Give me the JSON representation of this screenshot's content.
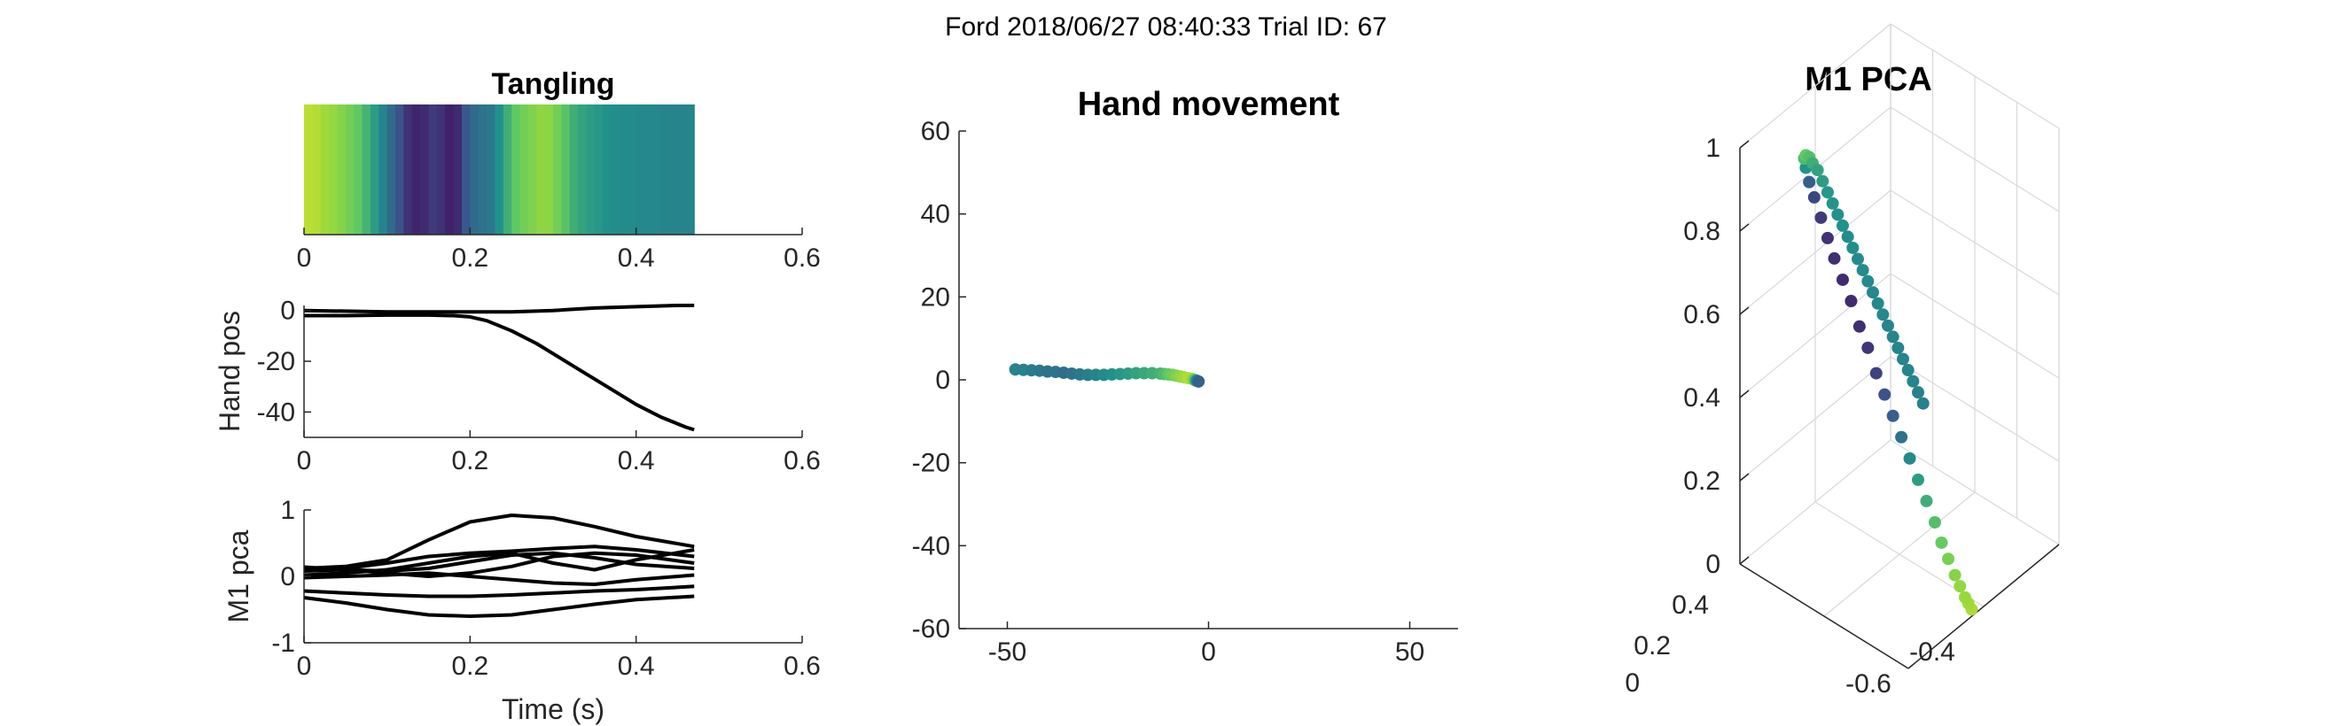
{
  "figure": {
    "suptitle": "Ford 2018/06/27 08:40:33 Trial ID: 67",
    "colors": {
      "line": "#000000",
      "axis": "#262626",
      "grid3d": "#d9d9d9",
      "viridis": [
        "#440154",
        "#3b528b",
        "#21918c",
        "#5ec962",
        "#a0da39",
        "#fde725"
      ]
    }
  },
  "chart_data": [
    {
      "id": "tangling",
      "type": "heatmap",
      "title": "Tangling",
      "xlabel": "",
      "ylabel": "",
      "xlim": [
        0,
        0.6
      ],
      "xticks": [
        0,
        0.2,
        0.4,
        0.6
      ],
      "xtick_labels": [
        "0",
        "0.2",
        "0.4",
        "0.6"
      ],
      "colormap": "viridis",
      "clim": [
        0,
        1
      ],
      "t": [
        0.0,
        0.01,
        0.02,
        0.03,
        0.04,
        0.05,
        0.06,
        0.07,
        0.08,
        0.09,
        0.1,
        0.11,
        0.12,
        0.13,
        0.14,
        0.15,
        0.16,
        0.17,
        0.18,
        0.19,
        0.2,
        0.21,
        0.22,
        0.23,
        0.24,
        0.25,
        0.26,
        0.27,
        0.28,
        0.29,
        0.3,
        0.31,
        0.32,
        0.33,
        0.34,
        0.35,
        0.36,
        0.37,
        0.38,
        0.39,
        0.4,
        0.41,
        0.42,
        0.43,
        0.44,
        0.45,
        0.46
      ],
      "values": [
        0.86,
        0.84,
        0.8,
        0.76,
        0.72,
        0.66,
        0.6,
        0.52,
        0.44,
        0.36,
        0.28,
        0.2,
        0.12,
        0.09,
        0.1,
        0.14,
        0.12,
        0.08,
        0.1,
        0.22,
        0.28,
        0.3,
        0.32,
        0.4,
        0.5,
        0.6,
        0.66,
        0.7,
        0.75,
        0.74,
        0.66,
        0.58,
        0.5,
        0.46,
        0.44,
        0.42,
        0.4,
        0.39,
        0.38,
        0.38,
        0.37,
        0.37,
        0.37,
        0.36,
        0.36,
        0.36,
        0.36
      ]
    },
    {
      "id": "hand-pos",
      "type": "line",
      "title": "",
      "xlabel": "",
      "ylabel": "Hand pos",
      "xlim": [
        0,
        0.6
      ],
      "ylim": [
        -50,
        2
      ],
      "xticks": [
        0,
        0.2,
        0.4,
        0.6
      ],
      "xtick_labels": [
        "0",
        "0.2",
        "0.4",
        "0.6"
      ],
      "yticks": [
        0,
        -20,
        -40
      ],
      "ytick_labels": [
        "0",
        "-20",
        "-40"
      ],
      "series": [
        {
          "x": [
            0,
            0.1,
            0.2,
            0.25,
            0.3,
            0.35,
            0.4,
            0.45,
            0.47
          ],
          "y": [
            0,
            -0.5,
            -0.5,
            -0.5,
            0,
            1,
            1.5,
            2,
            2
          ]
        },
        {
          "x": [
            0,
            0.05,
            0.1,
            0.15,
            0.18,
            0.2,
            0.22,
            0.25,
            0.28,
            0.31,
            0.34,
            0.37,
            0.4,
            0.43,
            0.46,
            0.47
          ],
          "y": [
            -2,
            -2,
            -1.8,
            -1.8,
            -2,
            -2.5,
            -4,
            -8,
            -13,
            -19,
            -25,
            -31,
            -37,
            -42,
            -46,
            -47
          ]
        }
      ]
    },
    {
      "id": "m1-pca-traces",
      "type": "line",
      "title": "",
      "xlabel": "Time (s)",
      "ylabel": "M1 pca",
      "xlim": [
        0,
        0.6
      ],
      "ylim": [
        -1,
        1
      ],
      "xticks": [
        0,
        0.2,
        0.4,
        0.6
      ],
      "xtick_labels": [
        "0",
        "0.2",
        "0.4",
        "0.6"
      ],
      "yticks": [
        1,
        0,
        -1
      ],
      "ytick_labels": [
        "1",
        "0",
        "-1"
      ],
      "series": [
        {
          "x": [
            0,
            0.05,
            0.1,
            0.15,
            0.2,
            0.25,
            0.3,
            0.35,
            0.4,
            0.47
          ],
          "y": [
            0.12,
            0.15,
            0.25,
            0.55,
            0.82,
            0.92,
            0.88,
            0.75,
            0.6,
            0.45
          ]
        },
        {
          "x": [
            0,
            0.05,
            0.1,
            0.15,
            0.2,
            0.25,
            0.3,
            0.35,
            0.4,
            0.47
          ],
          "y": [
            0.1,
            0.12,
            0.2,
            0.3,
            0.35,
            0.38,
            0.42,
            0.45,
            0.4,
            0.3
          ]
        },
        {
          "x": [
            0,
            0.05,
            0.1,
            0.15,
            0.2,
            0.25,
            0.3,
            0.35,
            0.4,
            0.47
          ],
          "y": [
            0.02,
            0.05,
            0.1,
            0.2,
            0.3,
            0.35,
            0.2,
            0.1,
            0.25,
            0.4
          ]
        },
        {
          "x": [
            0,
            0.05,
            0.1,
            0.15,
            0.2,
            0.25,
            0.3,
            0.35,
            0.4,
            0.47
          ],
          "y": [
            0.08,
            0.1,
            0.05,
            0.0,
            0.05,
            0.15,
            0.3,
            0.35,
            0.32,
            0.2
          ]
        },
        {
          "x": [
            0,
            0.05,
            0.1,
            0.15,
            0.2,
            0.25,
            0.3,
            0.35,
            0.4,
            0.47
          ],
          "y": [
            0.14,
            0.1,
            0.08,
            0.12,
            0.22,
            0.32,
            0.35,
            0.28,
            0.18,
            0.12
          ]
        },
        {
          "x": [
            0,
            0.05,
            0.1,
            0.15,
            0.2,
            0.25,
            0.3,
            0.35,
            0.4,
            0.47
          ],
          "y": [
            -0.02,
            0.0,
            0.02,
            0.05,
            0.0,
            -0.05,
            -0.1,
            -0.12,
            -0.05,
            0.02
          ]
        },
        {
          "x": [
            0,
            0.05,
            0.1,
            0.15,
            0.2,
            0.25,
            0.3,
            0.35,
            0.4,
            0.47
          ],
          "y": [
            -0.22,
            -0.25,
            -0.28,
            -0.3,
            -0.3,
            -0.28,
            -0.25,
            -0.22,
            -0.2,
            -0.15
          ]
        },
        {
          "x": [
            0,
            0.05,
            0.1,
            0.15,
            0.2,
            0.25,
            0.3,
            0.35,
            0.4,
            0.47
          ],
          "y": [
            -0.32,
            -0.4,
            -0.5,
            -0.58,
            -0.6,
            -0.58,
            -0.5,
            -0.42,
            -0.35,
            -0.3
          ]
        }
      ]
    },
    {
      "id": "hand-movement",
      "type": "scatter",
      "title": "Hand movement",
      "xlabel": "",
      "ylabel": "",
      "xlim": [
        -62,
        62
      ],
      "ylim": [
        -60,
        60
      ],
      "xticks": [
        -50,
        0,
        50
      ],
      "xtick_labels": [
        "-50",
        "0",
        "50"
      ],
      "yticks": [
        60,
        40,
        20,
        0,
        -20,
        -40,
        -60
      ],
      "ytick_labels": [
        "60",
        "40",
        "20",
        "0",
        "-20",
        "-40",
        "-60"
      ],
      "colormap": "viridis",
      "x": [
        -48,
        -46,
        -44,
        -42,
        -40,
        -38,
        -36,
        -34,
        -32,
        -30,
        -28,
        -26,
        -24,
        -22,
        -20,
        -18,
        -16,
        -14,
        -12,
        -11,
        -10,
        -9,
        -8,
        -7,
        -6,
        -5,
        -4,
        -3.5,
        -3,
        -2.5
      ],
      "y": [
        2.5,
        2.4,
        2.3,
        2.2,
        2.0,
        1.9,
        1.7,
        1.5,
        1.3,
        1.2,
        1.2,
        1.2,
        1.3,
        1.4,
        1.5,
        1.6,
        1.6,
        1.6,
        1.5,
        1.4,
        1.3,
        1.2,
        1.0,
        0.8,
        0.6,
        0.4,
        0.2,
        0.0,
        -0.2,
        -0.4
      ],
      "color_values": [
        0.36,
        0.35,
        0.33,
        0.32,
        0.3,
        0.3,
        0.29,
        0.3,
        0.32,
        0.34,
        0.36,
        0.38,
        0.4,
        0.42,
        0.44,
        0.46,
        0.48,
        0.5,
        0.52,
        0.55,
        0.6,
        0.65,
        0.7,
        0.75,
        0.8,
        0.84,
        0.8,
        0.6,
        0.4,
        0.25
      ]
    },
    {
      "id": "m1-pca-3d",
      "type": "scatter",
      "title": "M1 PCA",
      "xlabel": "",
      "ylabel": "",
      "zlim": [
        0,
        1
      ],
      "zticks": [
        1,
        0.8,
        0.6,
        0.4,
        0.2,
        0
      ],
      "ztick_labels": [
        "1",
        "0.8",
        "0.6",
        "0.4",
        "0.2",
        "0"
      ],
      "yticks": [
        0.4,
        0.2,
        0
      ],
      "ytick_labels": [
        "0.4",
        "0.2",
        "0"
      ],
      "xticks": [
        -0.6,
        -0.4
      ],
      "xtick_labels": [
        "-0.6",
        "-0.4"
      ],
      "colormap": "viridis",
      "z": [
        0.04,
        0.05,
        0.06,
        0.08,
        0.1,
        0.13,
        0.16,
        0.2,
        0.24,
        0.28,
        0.32,
        0.36,
        0.4,
        0.44,
        0.48,
        0.53,
        0.57,
        0.62,
        0.66,
        0.7,
        0.74,
        0.78,
        0.82,
        0.85,
        0.88,
        0.9,
        0.91,
        0.91,
        0.9,
        0.89,
        0.87,
        0.85,
        0.83,
        0.81,
        0.79,
        0.77,
        0.75,
        0.73,
        0.71,
        0.69,
        0.67,
        0.65,
        0.63,
        0.61,
        0.59,
        0.57,
        0.55,
        0.53,
        0.51,
        0.49,
        0.47
      ],
      "depth": [
        1.0,
        0.98,
        0.96,
        0.93,
        0.9,
        0.86,
        0.82,
        0.78,
        0.73,
        0.68,
        0.63,
        0.58,
        0.53,
        0.48,
        0.43,
        0.38,
        0.33,
        0.28,
        0.23,
        0.18,
        0.14,
        0.1,
        0.06,
        0.03,
        0.01,
        0.0,
        0.01,
        0.03,
        0.05,
        0.08,
        0.11,
        0.14,
        0.17,
        0.2,
        0.23,
        0.26,
        0.29,
        0.32,
        0.35,
        0.38,
        0.41,
        0.44,
        0.47,
        0.5,
        0.53,
        0.56,
        0.59,
        0.62,
        0.65,
        0.68,
        0.71
      ],
      "color_values": [
        0.82,
        0.8,
        0.78,
        0.76,
        0.72,
        0.68,
        0.62,
        0.56,
        0.5,
        0.44,
        0.38,
        0.3,
        0.24,
        0.2,
        0.16,
        0.13,
        0.11,
        0.1,
        0.1,
        0.11,
        0.12,
        0.14,
        0.17,
        0.24,
        0.4,
        0.55,
        0.6,
        0.56,
        0.5,
        0.46,
        0.44,
        0.42,
        0.41,
        0.4,
        0.4,
        0.39,
        0.39,
        0.38,
        0.38,
        0.38,
        0.37,
        0.37,
        0.37,
        0.36,
        0.36,
        0.36,
        0.36,
        0.36,
        0.36,
        0.35,
        0.35
      ]
    }
  ]
}
